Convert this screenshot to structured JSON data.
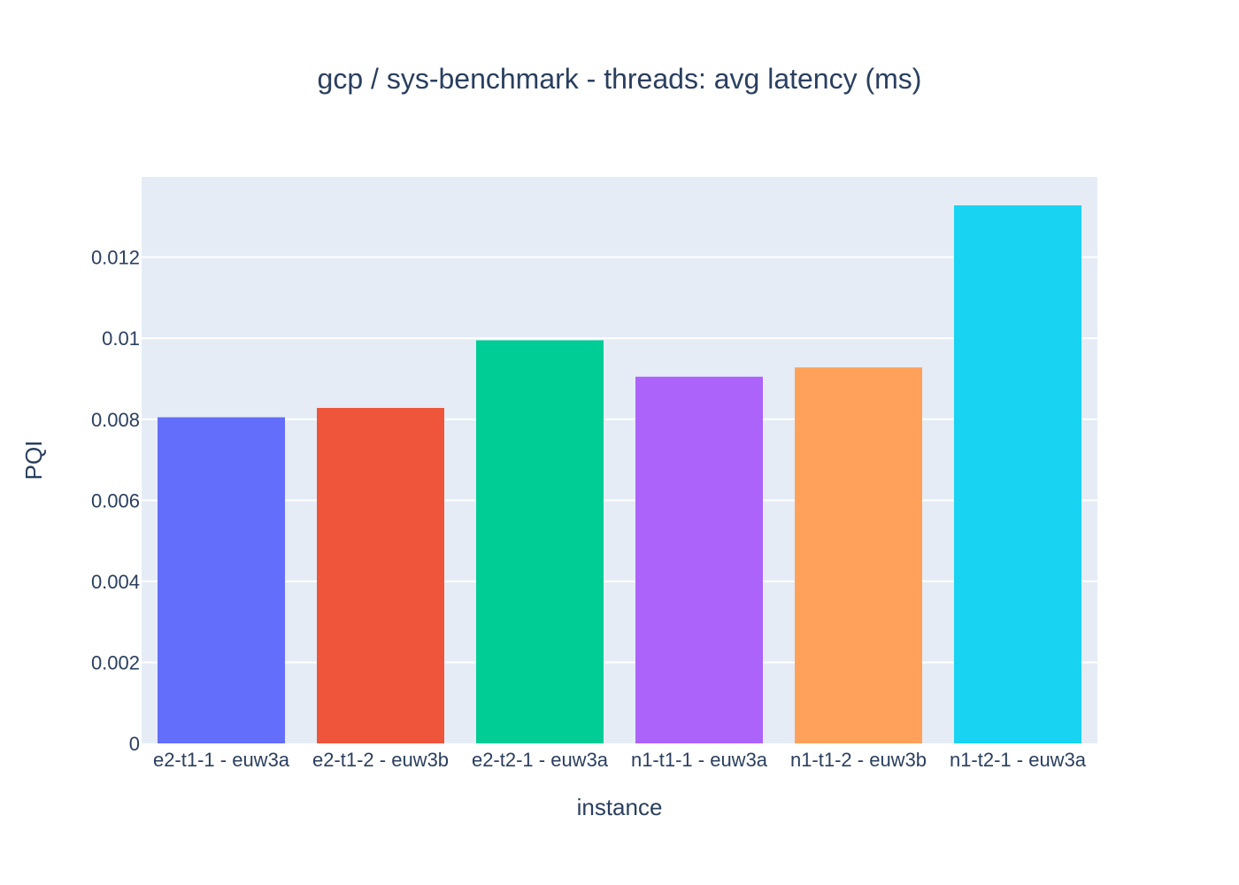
{
  "chart_data": {
    "type": "bar",
    "title": "gcp / sys-benchmark - threads: avg latency (ms)",
    "xlabel": "instance",
    "ylabel": "PQI",
    "categories": [
      "e2-t1-1 - euw3a",
      "e2-t1-2 - euw3b",
      "e2-t2-1 - euw3a",
      "n1-t1-1 - euw3a",
      "n1-t1-2 - euw3b",
      "n1-t2-1 - euw3a"
    ],
    "values": [
      0.00805,
      0.00828,
      0.00995,
      0.00905,
      0.00928,
      0.01328
    ],
    "colors": [
      "#636efa",
      "#EF553B",
      "#00cc96",
      "#ab63fa",
      "#FFA15A",
      "#19d3f3"
    ],
    "ylim": [
      0,
      0.01398
    ],
    "yticks": [
      0,
      0.002,
      0.004,
      0.006,
      0.008,
      0.01,
      0.012
    ],
    "ytick_labels": [
      "0",
      "0.002",
      "0.004",
      "0.006",
      "0.008",
      "0.01",
      "0.012"
    ],
    "grid": true,
    "plot_background": "#e5ecf6",
    "grid_color": "#ffffff",
    "text_color": "#2a3f5f"
  }
}
